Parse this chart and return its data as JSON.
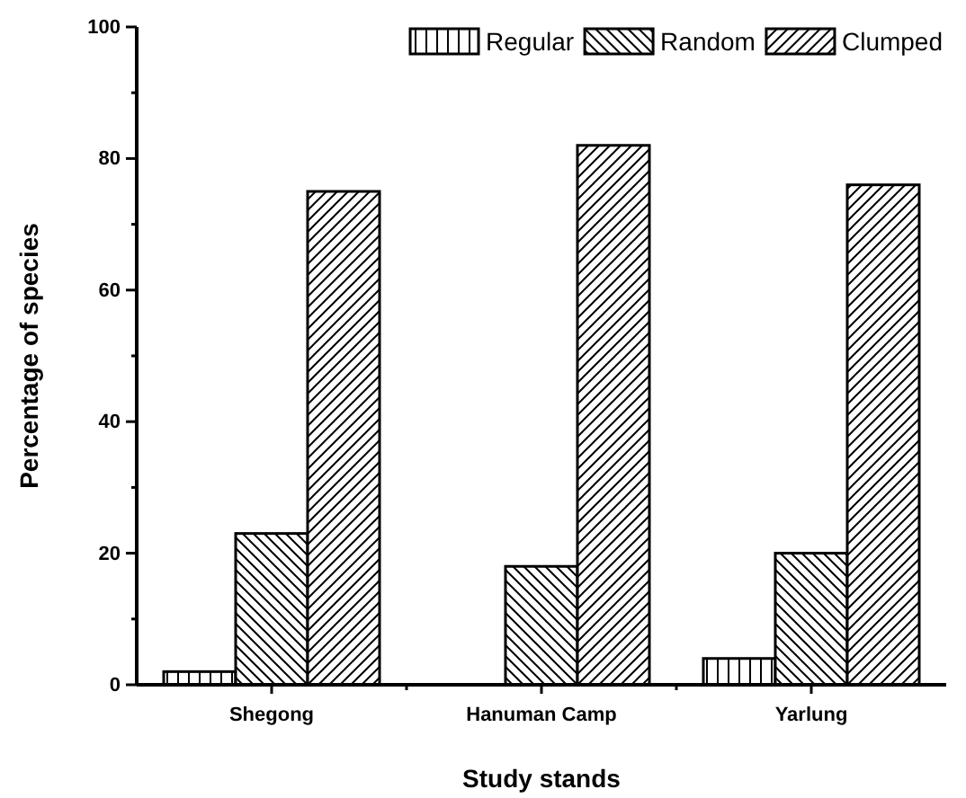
{
  "chart_data": {
    "type": "bar",
    "xlabel": "Study stands",
    "ylabel": "Percentage of species",
    "categories": [
      "Shegong",
      "Hanuman Camp",
      "Yarlung"
    ],
    "series": [
      {
        "name": "Regular",
        "color": "#000000",
        "values": [
          2,
          0,
          4
        ]
      },
      {
        "name": "Random",
        "color": "#000000",
        "values": [
          23,
          18,
          20
        ]
      },
      {
        "name": "Clumped",
        "color": "#000000",
        "values": [
          75,
          82,
          76
        ]
      }
    ],
    "ylim": [
      0,
      100
    ],
    "yticks": [
      0,
      {
        "value": 10,
        "label": null
      },
      20,
      {
        "value": 30,
        "label": null
      },
      40,
      {
        "value": 50,
        "label": null
      },
      60,
      {
        "value": 70,
        "label": null
      },
      80,
      {
        "value": 90,
        "label": null
      },
      100
    ],
    "grid": false,
    "legend": "top right"
  }
}
